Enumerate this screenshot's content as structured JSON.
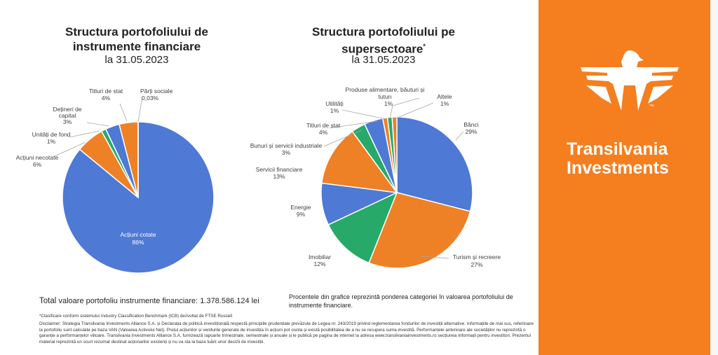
{
  "colors": {
    "blue": "#4e79d4",
    "orange": "#ee8026",
    "gray": "#9a9a9a",
    "gold": "#f2b10f",
    "lightblue": "#5b9bd5",
    "green": "#27a96a",
    "brand": "#f57e1f"
  },
  "left_title_line1": "Structura portofoliului de",
  "left_title_line2": "instrumente financiare",
  "left_date": "la 31.05.2023",
  "right_title_line1": "Structura portofoliului pe",
  "right_title_line2": "supersectoare",
  "right_title_mark": "*",
  "right_date": "la 31.05.2023",
  "total_prefix": "Total",
  "total_text": "valoare portofoliu instrumente financiare: 1.378.586.124 lei",
  "note_text": "Procentele din grafice reprezintă ponderea categoriei în valoarea portofoliului de instrumente financiare.",
  "footnote": "*Clasificare conform sistemului Industry Classification Benchmark (ICB) dezvoltat de FTSE Russell",
  "disclaimer": "Disclaimer: Strategia Transilvania Investments Alliance S.A. și Declarația de politică investițională respectă principiile prudențiale prevăzute de Legea nr. 243/2019 privind reglementarea fondurilor de investiții alternative. Informațiile de mai sus, referitoare la portofoliu sunt calculate pe baza VAN (Valoarea Activului Net). Prețul acțiunilor și veniturile generate de investiția în acțiuni pot oscila și există posibilitatea de a nu se recupera suma investită. Performanțele anterioare ale societăților nu reprezintă o garanție a performanțelor viitoare. Transilvania Investments Alliance S.A. furnizează rapoarte trimestriale, semestriale și anuale și le publică pe pagina de internet la adresa www.transilvaniainvestments.ro secțiunea Informații pentru investitori. Prezentul material reprezintă un scurt rezumat destinat acționarilor existenți și nu va sta la baza luării unor decizii de investiții.",
  "brand_line1": "Transilvania",
  "brand_line2": "Investments",
  "brand_tm": "TM",
  "chart_data": [
    {
      "type": "pie",
      "title": "Structura portofoliului de instrumente financiare",
      "subtitle": "la 31.05.2023",
      "slices": [
        {
          "label": "Acțiuni cotate",
          "value_text": "86%",
          "value": 86.0,
          "color": "#4e79d4"
        },
        {
          "label": "Acțiuni necotate",
          "value_text": "6%",
          "value": 6.0,
          "color": "#ee8026"
        },
        {
          "label": "Unități de fond",
          "value_text": "1%",
          "value": 1.0,
          "color": "#27a96a"
        },
        {
          "label": "Dețineri de capital",
          "value_text": "3%",
          "value": 3.0,
          "color": "#4e79d4"
        },
        {
          "label": "Titluri de stat",
          "value_text": "4%",
          "value": 4.0,
          "color": "#ee8026"
        },
        {
          "label": "Părți sociale",
          "value_text": "0,03%",
          "value": 0.03,
          "color": "#5b9bd5"
        }
      ]
    },
    {
      "type": "pie",
      "title": "Structura portofoliului pe supersectoare*",
      "subtitle": "la 31.05.2023",
      "slices": [
        {
          "label": "Bănci",
          "value_text": "29%",
          "value": 29,
          "color": "#4e79d4"
        },
        {
          "label": "Turism și recreere",
          "value_text": "27%",
          "value": 27,
          "color": "#ee8026"
        },
        {
          "label": "Imobiliar",
          "value_text": "12%",
          "value": 12,
          "color": "#27a96a"
        },
        {
          "label": "Energie",
          "value_text": "9%",
          "value": 9,
          "color": "#4e79d4"
        },
        {
          "label": "Servicii financiare",
          "value_text": "13%",
          "value": 13,
          "color": "#ee8026"
        },
        {
          "label": "Bunuri și servicii industriale",
          "value_text": "3%",
          "value": 3,
          "color": "#27a96a"
        },
        {
          "label": "Titluri de stat",
          "value_text": "4%",
          "value": 4,
          "color": "#4e79d4"
        },
        {
          "label": "Utilități",
          "value_text": "1%",
          "value": 1,
          "color": "#ee8026"
        },
        {
          "label": "Produse alimentare, băuturi și tutun",
          "value_text": "1%",
          "value": 1,
          "color": "#27a96a"
        },
        {
          "label": "Altele",
          "value_text": "1%",
          "value": 1,
          "color": "#ee8026"
        }
      ]
    }
  ]
}
